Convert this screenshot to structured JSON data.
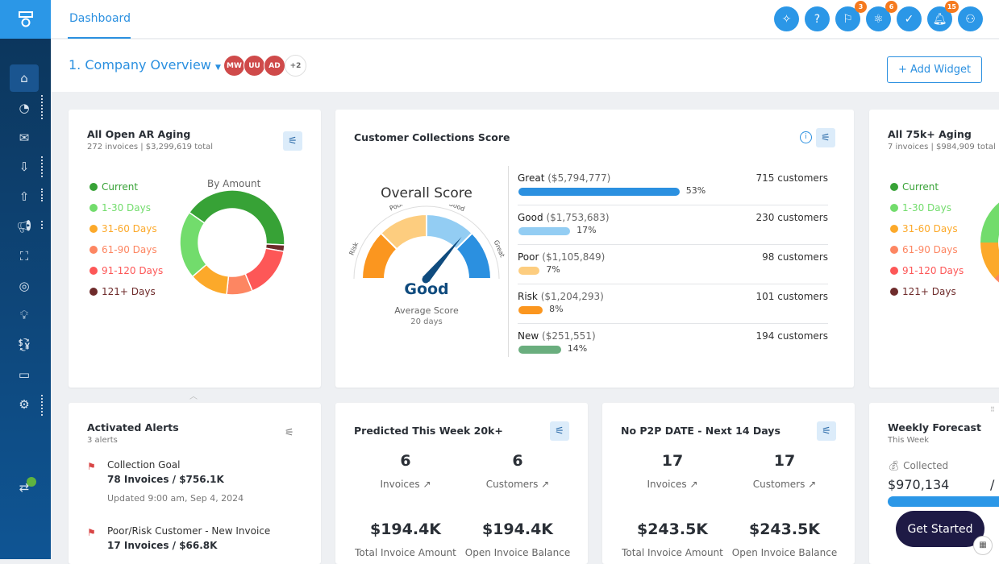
{
  "sidebar": {
    "items": [
      "home-icon",
      "speedometer-icon",
      "mail-icon",
      "download-dollar-icon",
      "upload-dollar-icon",
      "megaphone-icon",
      "workflow-icon",
      "target-icon",
      "lightbulb-icon",
      "currency-exchange-icon",
      "payment-card-icon",
      "gear-icon"
    ],
    "sync_icon": "sync-icon"
  },
  "header": {
    "tab": "Dashboard",
    "icons": [
      {
        "name": "sparkle-icon",
        "glyph": "✧"
      },
      {
        "name": "help-icon",
        "glyph": "?"
      },
      {
        "name": "flag-icon",
        "glyph": "⚐",
        "badge": "3"
      },
      {
        "name": "atom-icon",
        "glyph": "⚛",
        "badge": "6"
      },
      {
        "name": "check-icon",
        "glyph": "✓"
      },
      {
        "name": "bell-icon",
        "glyph": "🔔︎",
        "badge": "15"
      },
      {
        "name": "user-icon",
        "glyph": "⚇"
      }
    ]
  },
  "page": {
    "title": "1. Company Overview",
    "avatars": [
      "MW",
      "UU",
      "AD"
    ],
    "more": "+2",
    "add_widget": "+ Add Widget"
  },
  "colors": {
    "accent": "#2b97e7",
    "current": "#37a236",
    "d1_30": "#72dc6c",
    "d31_60": "#fca92a",
    "d61_90": "#fd8662",
    "d91_120": "#fd5757",
    "d121": "#6e2b2b"
  },
  "ar_aging": {
    "title": "All Open AR Aging",
    "subtitle": "272 invoices | $3,299,619 total",
    "chart_title": "By Amount",
    "legend": [
      "Current",
      "1-30 Days",
      "31-60 Days",
      "61-90 Days",
      "91-120 Days",
      "121+ Days"
    ]
  },
  "chart_data": {
    "type": "pie",
    "title": "By Amount",
    "categories": [
      "Current",
      "121+ Days",
      "91-120 Days",
      "61-90 Days",
      "31-60 Days",
      "1-30 Days"
    ],
    "values": [
      41,
      2,
      16,
      8,
      12,
      21
    ],
    "colors": [
      "#37a236",
      "#6e2b2b",
      "#fd5757",
      "#fd8662",
      "#fca92a",
      "#72dc6c"
    ]
  },
  "score": {
    "title": "Customer Collections Score",
    "overall": "Overall Score",
    "value": "Good",
    "avg_label": "Average Score",
    "avg_value": "20 days",
    "gauge_labels": [
      "Risk",
      "Poor",
      "Good",
      "Great"
    ],
    "rows": [
      {
        "name": "Great",
        "amount": "($5,794,777)",
        "pct": 53,
        "pct_label": "53%",
        "customers": "715 customers",
        "color": "#2b90e0"
      },
      {
        "name": "Good",
        "amount": "($1,753,683)",
        "pct": 17,
        "pct_label": "17%",
        "customers": "230 customers",
        "color": "#93cdf3"
      },
      {
        "name": "Poor",
        "amount": "($1,105,849)",
        "pct": 7,
        "pct_label": "7%",
        "customers": "98 customers",
        "color": "#fdcd7f"
      },
      {
        "name": "Risk",
        "amount": "($1,204,293)",
        "pct": 8,
        "pct_label": "8%",
        "customers": "101 customers",
        "color": "#fb961f"
      },
      {
        "name": "New",
        "amount": "($251,551)",
        "pct": 14,
        "pct_label": "14%",
        "customers": "194 customers",
        "color": "#6aae7e"
      }
    ]
  },
  "aging75": {
    "title": "All 75k+ Aging",
    "subtitle": "7 invoices | $984,909 total",
    "legend": [
      "Current",
      "1-30 Days",
      "31-60 Days",
      "61-90 Days",
      "91-120 Days",
      "121+ Days"
    ]
  },
  "alerts": {
    "title": "Activated Alerts",
    "subtitle": "3 alerts",
    "items": [
      {
        "title": "Collection Goal",
        "detail": "78 Invoices / $756.1K",
        "updated": "Updated 9:00 am, Sep 4, 2024"
      },
      {
        "title": "Poor/Risk Customer - New Invoice",
        "detail": "17 Invoices / $66.8K"
      }
    ]
  },
  "predicted": {
    "title": "Predicted This Week 20k+",
    "invoices": "6",
    "customers": "6",
    "invoices_label": "Invoices ↗",
    "customers_label": "Customers ↗",
    "total": "$194.4K",
    "open": "$194.4K",
    "total_label": "Total Invoice Amount",
    "open_label": "Open Invoice Balance"
  },
  "nop2p": {
    "title": "No P2P DATE - Next 14 Days",
    "invoices": "17",
    "customers": "17",
    "invoices_label": "Invoices ↗",
    "customers_label": "Customers ↗",
    "total": "$243.5K",
    "open": "$243.5K",
    "total_label": "Total Invoice Amount",
    "open_label": "Open Invoice Balance"
  },
  "forecast": {
    "title": "Weekly Forecast",
    "subtitle": "This Week",
    "collected_label": "Collected",
    "collected": "$970,134",
    "sep": "/"
  },
  "get_started": "Get Started"
}
